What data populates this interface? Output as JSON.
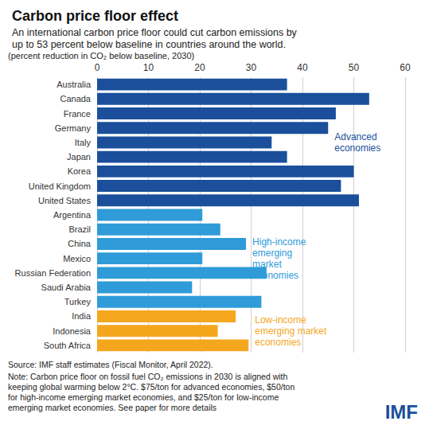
{
  "chart_data": {
    "type": "bar",
    "orientation": "horizontal",
    "title": "Carbon price floor effect",
    "subtitle": "An international carbon price floor could cut carbon emissions by\nup to 53 percent below baseline in countries around the world.",
    "unit_note": "(percent reduction in CO₂ below baseline, 2030)",
    "categories": [
      "Australia",
      "Canada",
      "France",
      "Germany",
      "Italy",
      "Japan",
      "Korea",
      "United Kingdom",
      "United States",
      "Argentina",
      "Brazil",
      "China",
      "Mexico",
      "Russian Federation",
      "Saudi Arabia",
      "Turkey",
      "India",
      "Indonesia",
      "South Africa"
    ],
    "values": [
      37,
      53,
      46.5,
      45,
      34,
      37,
      50,
      47.5,
      51,
      20.5,
      24,
      29,
      20.5,
      33,
      18.5,
      32,
      27,
      23.5,
      29.5
    ],
    "colors": [
      "#1b4f9c",
      "#1b4f9c",
      "#1b4f9c",
      "#1b4f9c",
      "#1b4f9c",
      "#1b4f9c",
      "#1b4f9c",
      "#1b4f9c",
      "#1b4f9c",
      "#2f9bd8",
      "#2f9bd8",
      "#2f9bd8",
      "#2f9bd8",
      "#2f9bd8",
      "#2f9bd8",
      "#2f9bd8",
      "#f4a71d",
      "#f4a71d",
      "#f4a71d"
    ],
    "annotations": [
      {
        "text": "Advanced\neconomies",
        "color": "#1b4f9c"
      },
      {
        "text": "High-income\nemerging\nmarket\neconomies",
        "color": "#2f9bd8"
      },
      {
        "text": "Low-income\nemerging market\neconomies",
        "color": "#f4a71d"
      }
    ],
    "xlim": [
      0,
      60
    ],
    "xticks": [
      0,
      10,
      20,
      30,
      40,
      50,
      60
    ],
    "grid": true,
    "source": "Source: IMF staff estimates (Fiscal Monitor, April 2022).",
    "note": "Note: Carbon price floor on fossil fuel CO₂ emissions in 2030 is aligned with\nkeeping global warming below 2°C. $75/ton for advanced economies, $50/ton\nfor high-income emerging market economies, and $25/ton for low-income\nemerging market economies. See paper for more details",
    "logo": "IMF"
  }
}
